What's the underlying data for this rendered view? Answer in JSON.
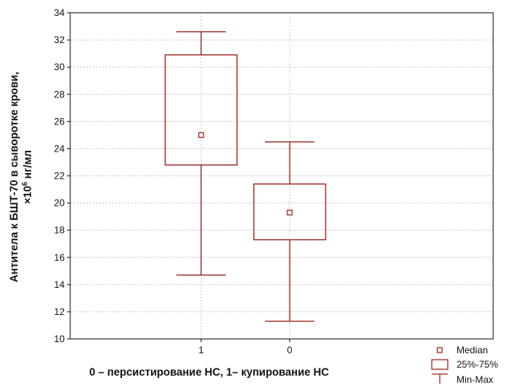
{
  "chart_data": {
    "type": "boxplot",
    "categories": [
      "1",
      "0"
    ],
    "boxes": [
      {
        "category": "1",
        "min": 14.7,
        "q1": 22.8,
        "median": 25.0,
        "q3": 30.9,
        "max": 32.6
      },
      {
        "category": "0",
        "min": 11.3,
        "q1": 17.3,
        "median": 19.3,
        "q3": 21.4,
        "max": 24.5
      }
    ],
    "ylim": [
      10,
      34
    ],
    "yticks": [
      10,
      12,
      14,
      16,
      18,
      20,
      22,
      24,
      26,
      28,
      30,
      32,
      34
    ],
    "grid": true,
    "legend_position": "bottom-right",
    "xlabel": "0 – персистирование НС, 1– купирование НС",
    "ylabel_line1": "Антитела к БШТ-70 в сыворотке крови,",
    "ylabel_line2_prefix": "×10",
    "ylabel_line2_exp": "6",
    "ylabel_line2_suffix": " нг/мл",
    "legend": {
      "median": "Median",
      "quartiles": "25%-75%",
      "range": "Min-Max"
    },
    "colors": {
      "box": "#a0322a",
      "grid": "#c8c8c8",
      "axis": "#111111"
    }
  }
}
